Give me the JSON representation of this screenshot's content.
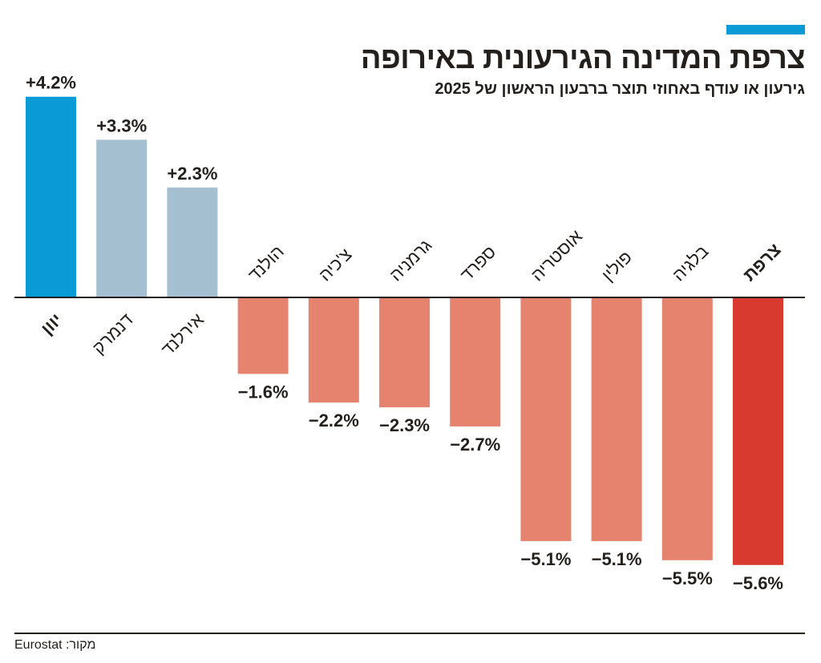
{
  "title": "צרפת המדינה הגירעונית באירופה",
  "subtitle": "גירעון או עודף באחוזי תוצר ברבעון הראשון של 2025",
  "source": "מקור: Eurostat",
  "colors": {
    "accent": "#0a9ad6",
    "highlight_positive": "#0a9ad6",
    "positive": "#a3bfd0",
    "negative": "#e5836f",
    "highlight_negative": "#d93a30"
  },
  "chart_data": {
    "type": "bar",
    "title": "צרפת המדינה הגירעונית באירופה",
    "ylabel": "",
    "unit": "%",
    "grid": false,
    "categories": [
      "יוון",
      "דנמרק",
      "אירלנד",
      "הולנד",
      "צ'כיה",
      "גרמניה",
      "ספרד",
      "אוסטריה",
      "פולין",
      "בלגיה",
      "צרפת"
    ],
    "values": [
      4.2,
      3.3,
      2.3,
      -1.6,
      -2.2,
      -2.3,
      -2.7,
      -5.1,
      -5.1,
      -5.5,
      -5.6
    ],
    "value_labels": [
      "+4.2%",
      "+3.3%",
      "+2.3%",
      "−1.6%",
      "−2.2%",
      "−2.3%",
      "−2.7%",
      "−5.1%",
      "−5.1%",
      "−5.5%",
      "−5.6%"
    ],
    "highlighted": [
      "יוון",
      "צרפת"
    ]
  }
}
